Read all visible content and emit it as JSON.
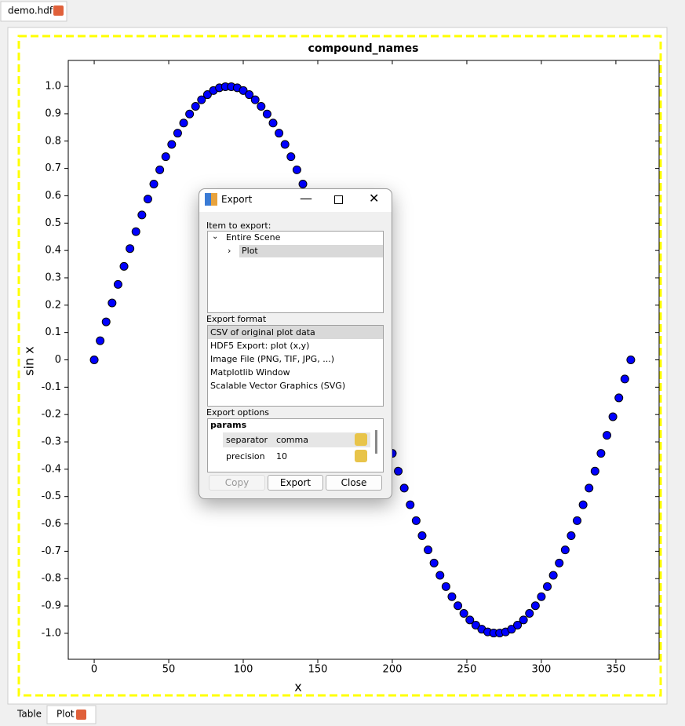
{
  "window": {
    "tab": "demo.hdf5",
    "bottom_tabs": [
      "Table",
      "Plot"
    ]
  },
  "dialog": {
    "title": "Export",
    "item_label": "Item to export:",
    "tree": [
      "Entire Scene",
      "Plot"
    ],
    "format_label": "Export format",
    "formats": [
      "CSV of original plot data",
      "HDF5 Export: plot (x,y)",
      "Image File (PNG, TIF, JPG, ...)",
      "Matplotlib Window",
      "Scalable Vector Graphics (SVG)"
    ],
    "options_label": "Export options",
    "params": "params",
    "rows": [
      [
        "separator",
        "comma"
      ],
      [
        "precision",
        "10"
      ]
    ],
    "buttons": [
      "Copy",
      "Export",
      "Close"
    ]
  },
  "chart_data": {
    "type": "scatter",
    "title": "compound_names",
    "xlabel": "x",
    "ylabel": "sin x",
    "color": "#0000ff",
    "x": [
      0,
      4,
      8,
      12,
      16,
      20,
      24,
      28,
      32,
      36,
      40,
      44,
      48,
      52,
      56,
      60,
      64,
      68,
      72,
      76,
      80,
      84,
      88,
      92,
      96,
      100,
      104,
      108,
      112,
      116,
      120,
      124,
      128,
      132,
      136,
      140,
      144,
      148,
      152,
      156,
      160,
      164,
      168,
      172,
      176,
      180,
      184,
      188,
      192,
      196,
      200,
      204,
      208,
      212,
      216,
      220,
      224,
      228,
      232,
      236,
      240,
      244,
      248,
      252,
      256,
      260,
      264,
      268,
      272,
      276,
      280,
      284,
      288,
      292,
      296,
      300,
      304,
      308,
      312,
      316,
      320,
      324,
      328,
      332,
      336,
      340,
      344,
      348,
      352,
      356,
      360
    ],
    "values": [
      0,
      0.07,
      0.139,
      0.208,
      0.276,
      0.342,
      0.407,
      0.469,
      0.53,
      0.588,
      0.643,
      0.695,
      0.743,
      0.788,
      0.829,
      0.866,
      0.899,
      0.927,
      0.951,
      0.97,
      0.985,
      0.995,
      0.999,
      0.999,
      0.995,
      0.985,
      0.97,
      0.951,
      0.927,
      0.899,
      0.866,
      0.829,
      0.788,
      0.743,
      0.695,
      0.643,
      0.588,
      0.53,
      0.469,
      0.407,
      0.342,
      0.276,
      0.208,
      0.139,
      0.07,
      0,
      -0.07,
      -0.139,
      -0.208,
      -0.276,
      -0.342,
      -0.407,
      -0.469,
      -0.53,
      -0.588,
      -0.643,
      -0.695,
      -0.743,
      -0.788,
      -0.829,
      -0.866,
      -0.899,
      -0.927,
      -0.951,
      -0.97,
      -0.985,
      -0.995,
      -0.999,
      -0.999,
      -0.995,
      -0.985,
      -0.97,
      -0.951,
      -0.927,
      -0.899,
      -0.866,
      -0.829,
      -0.788,
      -0.743,
      -0.695,
      -0.643,
      -0.588,
      -0.53,
      -0.469,
      -0.407,
      -0.342,
      -0.276,
      -0.208,
      -0.139,
      -0.07,
      0
    ],
    "xlim": [
      -17.4,
      379
    ],
    "ylim": [
      -1.095,
      1.095
    ],
    "xticks": [
      0,
      50,
      100,
      150,
      200,
      250,
      300,
      350
    ],
    "yticks": [
      {
        "value": 1,
        "label": "1.0"
      },
      0.9,
      0.8,
      0.7,
      0.6,
      0.5,
      0.4,
      0.3,
      0.2,
      0.1,
      0,
      -0.1,
      -0.2,
      -0.3,
      -0.4,
      -0.5,
      -0.6,
      -0.7,
      -0.8,
      -0.9,
      {
        "value": -1,
        "label": "-1.0"
      }
    ]
  }
}
